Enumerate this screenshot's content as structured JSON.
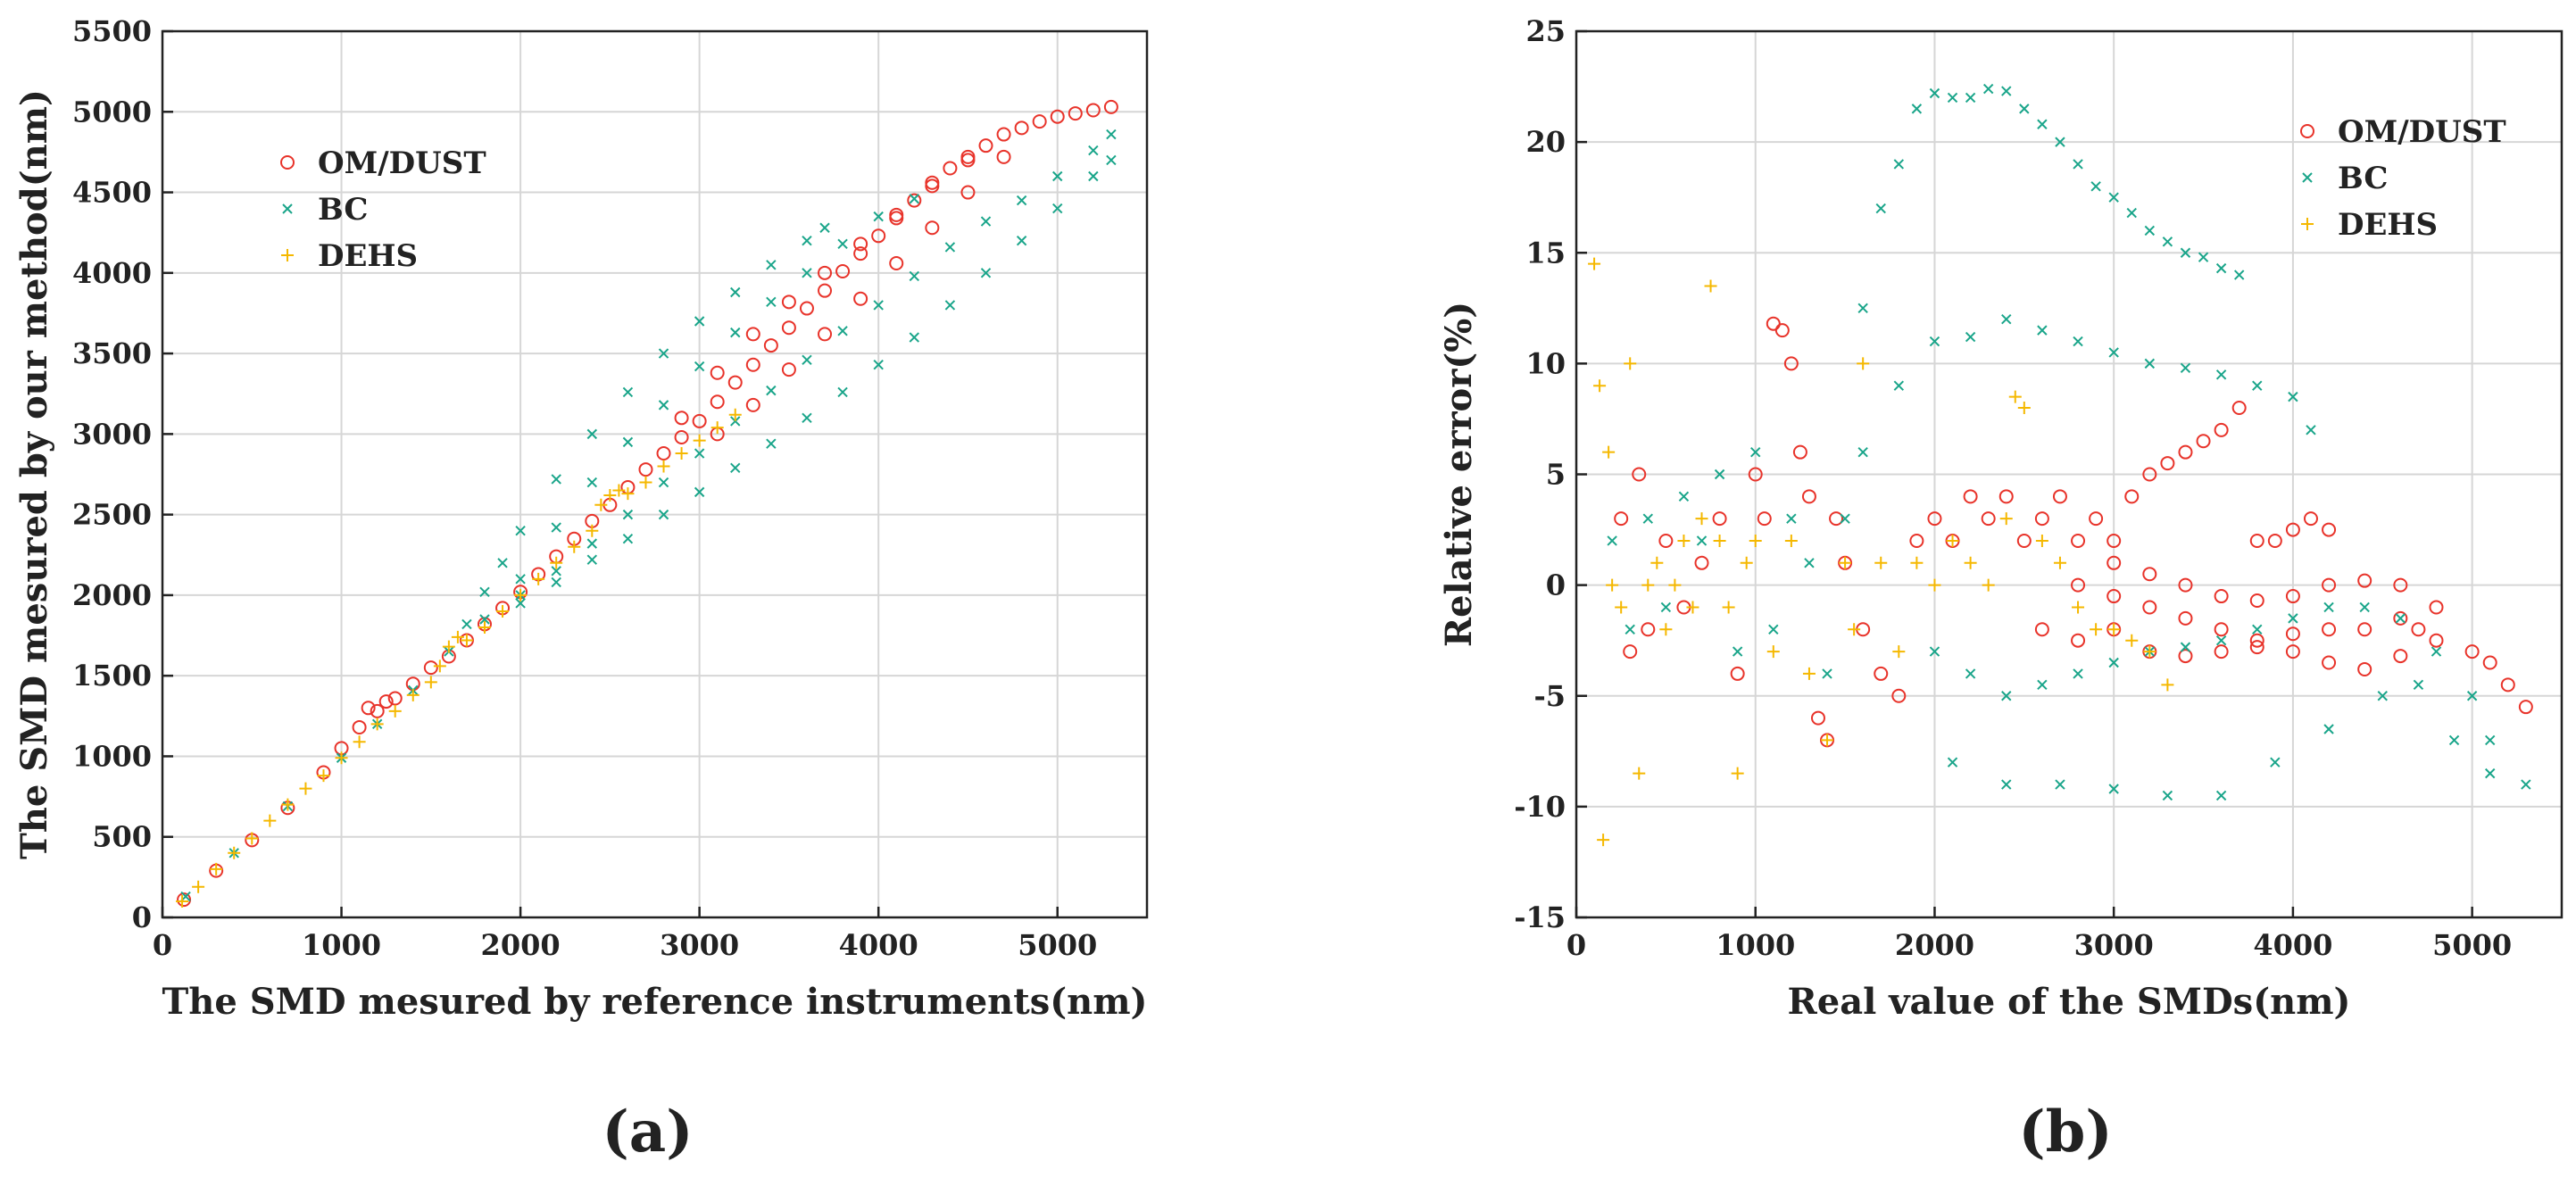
{
  "chart_data": [
    {
      "panel": "(a)",
      "type": "scatter",
      "xlabel": "The SMD mesured by reference instruments(nm)",
      "ylabel": "The SMD mesured by our method(nm)",
      "xlim": [
        0,
        5500
      ],
      "ylim": [
        0,
        5500
      ],
      "xticks": [
        0,
        1000,
        2000,
        3000,
        4000,
        5000
      ],
      "yticks": [
        0,
        500,
        1000,
        1500,
        2000,
        2500,
        3000,
        3500,
        4000,
        4500,
        5000,
        5500
      ],
      "grid": true,
      "legend_position": "top-left",
      "series": [
        {
          "name": "OM/DUST",
          "marker": "circle",
          "color": "#e8332a",
          "x": [
            120,
            300,
            500,
            700,
            900,
            1000,
            1100,
            1200,
            1300,
            1400,
            1500,
            1600,
            1700,
            1800,
            1900,
            2000,
            2100,
            2200,
            2300,
            2400,
            2500,
            2600,
            2700,
            2800,
            2900,
            3000,
            3100,
            3200,
            3300,
            3400,
            3500,
            3600,
            3700,
            3800,
            3900,
            4000,
            4100,
            4200,
            4300,
            4400,
            4500,
            4600,
            4700,
            4800,
            4900,
            5000,
            5100,
            5200,
            5300,
            1150,
            1250,
            3100,
            3300,
            3500,
            3700,
            3900,
            4100,
            4300,
            4500,
            4700,
            2900,
            3100,
            3300,
            3500,
            3700,
            3900,
            4100,
            4300,
            4500
          ],
          "y": [
            110,
            290,
            480,
            680,
            900,
            1050,
            1180,
            1280,
            1360,
            1450,
            1550,
            1620,
            1720,
            1820,
            1920,
            2020,
            2130,
            2240,
            2350,
            2460,
            2560,
            2670,
            2780,
            2880,
            2980,
            3080,
            3200,
            3320,
            3430,
            3550,
            3660,
            3780,
            3890,
            4010,
            4120,
            4230,
            4340,
            4450,
            4560,
            4650,
            4720,
            4790,
            4860,
            4900,
            4940,
            4970,
            4990,
            5010,
            5030,
            1300,
            1340,
            3000,
            3180,
            3400,
            3620,
            3840,
            4060,
            4280,
            4500,
            4720,
            3100,
            3380,
            3620,
            3820,
            4000,
            4180,
            4360,
            4540,
            4700
          ]
        },
        {
          "name": "BC",
          "marker": "x",
          "color": "#1aa58a",
          "x": [
            130,
            400,
            700,
            1000,
            1200,
            1400,
            1600,
            1700,
            1800,
            1900,
            2000,
            2200,
            2400,
            2600,
            2800,
            3000,
            3200,
            3400,
            3600,
            3700,
            2000,
            2200,
            2400,
            2600,
            2800,
            3000,
            3200,
            3400,
            3600,
            3800,
            4000,
            4200,
            2000,
            2200,
            2400,
            2600,
            2800,
            3000,
            3200,
            3400,
            3600,
            3800,
            4000,
            4200,
            4400,
            4600,
            4800,
            5000,
            5200,
            5300,
            1800,
            2000,
            2200,
            2400,
            2600,
            2800,
            3000,
            3200,
            3400,
            3600,
            3800,
            4000,
            4200,
            4400,
            4600,
            4800,
            5000,
            5200,
            5300
          ],
          "y": [
            130,
            400,
            690,
            990,
            1200,
            1410,
            1650,
            1820,
            2020,
            2200,
            2400,
            2720,
            3000,
            3260,
            3500,
            3700,
            3880,
            4050,
            4200,
            4280,
            2100,
            2420,
            2700,
            2950,
            3180,
            3420,
            3630,
            3820,
            4000,
            4180,
            4350,
            4460,
            2000,
            2150,
            2320,
            2500,
            2700,
            2880,
            3080,
            3270,
            3460,
            3640,
            3800,
            3980,
            4160,
            4320,
            4450,
            4600,
            4760,
            4860,
            1850,
            1950,
            2080,
            2220,
            2350,
            2500,
            2640,
            2790,
            2940,
            3100,
            3260,
            3430,
            3600,
            3800,
            4000,
            4200,
            4400,
            4600,
            4700
          ]
        },
        {
          "name": "DEHS",
          "marker": "plus",
          "color": "#f5b800",
          "x": [
            110,
            200,
            300,
            400,
            500,
            600,
            700,
            800,
            900,
            1000,
            1100,
            1200,
            1300,
            1400,
            1500,
            1550,
            1600,
            1650,
            1700,
            1800,
            1900,
            2000,
            2100,
            2200,
            2300,
            2400,
            2450,
            2500,
            2550,
            2600,
            2700,
            2800,
            2900,
            3000,
            3100,
            3200
          ],
          "y": [
            100,
            190,
            300,
            400,
            490,
            600,
            700,
            800,
            880,
            990,
            1090,
            1200,
            1280,
            1380,
            1460,
            1560,
            1680,
            1740,
            1720,
            1800,
            1900,
            2000,
            2100,
            2200,
            2300,
            2400,
            2560,
            2620,
            2650,
            2630,
            2700,
            2800,
            2880,
            2960,
            3040,
            3120
          ]
        }
      ]
    },
    {
      "panel": "(b)",
      "type": "scatter",
      "xlabel": "Real value of the SMDs(nm)",
      "ylabel": "Relative error(%)",
      "xlim": [
        0,
        5500
      ],
      "ylim": [
        -15,
        25
      ],
      "xticks": [
        0,
        1000,
        2000,
        3000,
        4000,
        5000
      ],
      "yticks": [
        -15,
        -10,
        -5,
        0,
        5,
        10,
        15,
        20,
        25
      ],
      "grid": true,
      "legend_position": "top-right",
      "series": [
        {
          "name": "OM/DUST",
          "marker": "circle",
          "color": "#e8332a",
          "x": [
            250,
            300,
            350,
            400,
            500,
            600,
            700,
            800,
            900,
            1000,
            1050,
            1100,
            1150,
            1200,
            1250,
            1300,
            1350,
            1400,
            1450,
            1500,
            1600,
            1700,
            1800,
            1900,
            2000,
            2100,
            2200,
            2300,
            2400,
            2500,
            2600,
            2700,
            2800,
            2900,
            3000,
            3100,
            3200,
            3300,
            3400,
            3500,
            3600,
            3700,
            3800,
            3900,
            4000,
            4100,
            4200,
            3000,
            3200,
            3400,
            3600,
            3800,
            4000,
            4200,
            4400,
            4600,
            4800,
            5000,
            5100,
            5200,
            5300,
            2600,
            2800,
            3000,
            3200,
            3400,
            3600,
            3800,
            4000,
            4200,
            4400,
            4600,
            4700,
            4800,
            2800,
            3000,
            3200,
            3400,
            3600,
            3800,
            4000,
            4200,
            4400,
            4600
          ],
          "y": [
            3,
            -3,
            5,
            -2,
            2,
            -1,
            1,
            3,
            -4,
            5,
            3,
            11.8,
            11.5,
            10,
            6,
            4,
            -6,
            -7,
            3,
            1,
            -2,
            -4,
            -5,
            2,
            3,
            2,
            4,
            3,
            4,
            2,
            3,
            4,
            2,
            3,
            2,
            4,
            5,
            5.5,
            6,
            6.5,
            7,
            8,
            2,
            2,
            2.5,
            3,
            2.5,
            1,
            0.5,
            0,
            -0.5,
            -0.7,
            -0.5,
            0,
            0.2,
            0,
            -1,
            -3,
            -3.5,
            -4.5,
            -5.5,
            -2,
            -2.5,
            -2,
            -3,
            -3.2,
            -3,
            -2.8,
            -2.2,
            -2,
            -2,
            -1.5,
            -2,
            -2.5,
            0,
            -0.5,
            -1,
            -1.5,
            -2,
            -2.5,
            -3,
            -3.5,
            -3.8,
            -3.2
          ]
        },
        {
          "name": "BC",
          "marker": "x",
          "color": "#1aa58a",
          "x": [
            200,
            300,
            400,
            500,
            600,
            700,
            800,
            900,
            1000,
            1100,
            1200,
            1300,
            1400,
            1500,
            1600,
            1700,
            1800,
            1900,
            2000,
            2100,
            2200,
            2300,
            2400,
            2500,
            2600,
            2700,
            2800,
            2900,
            3000,
            3100,
            3200,
            3300,
            3400,
            3500,
            3600,
            3700,
            1600,
            1800,
            2000,
            2200,
            2400,
            2600,
            2800,
            3000,
            3200,
            3400,
            3600,
            3800,
            4000,
            4100,
            2000,
            2200,
            2400,
            2600,
            2800,
            3000,
            3200,
            3400,
            3600,
            3800,
            4000,
            4200,
            4400,
            4600,
            4800,
            5000,
            5100,
            2100,
            2400,
            2700,
            3000,
            3300,
            3600,
            3900,
            4200,
            4500,
            4700,
            4900,
            5100,
            5300
          ],
          "y": [
            2,
            -2,
            3,
            -1,
            4,
            2,
            5,
            -3,
            6,
            -2,
            3,
            1,
            -4,
            3,
            12.5,
            17,
            19,
            21.5,
            22.2,
            22,
            22,
            22.4,
            22.3,
            21.5,
            20.8,
            20,
            19,
            18,
            17.5,
            16.8,
            16,
            15.5,
            15,
            14.8,
            14.3,
            14,
            6,
            9,
            11,
            11.2,
            12,
            11.5,
            11,
            10.5,
            10,
            9.8,
            9.5,
            9,
            8.5,
            7,
            -3,
            -4,
            -5,
            -4.5,
            -4,
            -3.5,
            -3,
            -2.8,
            -2.5,
            -2,
            -1.5,
            -1,
            -1,
            -1.5,
            -3,
            -5,
            -7,
            -8,
            -9,
            -9,
            -9.2,
            -9.5,
            -9.5,
            -8,
            -6.5,
            -5,
            -4.5,
            -7,
            -8.5,
            -9
          ]
        },
        {
          "name": "DEHS",
          "marker": "plus",
          "color": "#f5b800",
          "x": [
            100,
            130,
            150,
            180,
            200,
            250,
            300,
            350,
            400,
            450,
            500,
            550,
            600,
            650,
            700,
            750,
            800,
            850,
            900,
            950,
            1000,
            1100,
            1200,
            1300,
            1400,
            1500,
            1550,
            1600,
            1700,
            1800,
            1900,
            2000,
            2100,
            2200,
            2300,
            2400,
            2450,
            2500,
            2600,
            2700,
            2800,
            2900,
            3000,
            3100,
            3200,
            3300
          ],
          "y": [
            14.5,
            9,
            -11.5,
            6,
            0,
            -1,
            10,
            -8.5,
            0,
            1,
            -2,
            0,
            2,
            -1,
            3,
            13.5,
            2,
            -1,
            -8.5,
            1,
            2,
            -3,
            2,
            -4,
            -7,
            1,
            -2,
            10,
            1,
            -3,
            1,
            0,
            2,
            1,
            0,
            3,
            8.5,
            8,
            2,
            1,
            -1,
            -2,
            -2,
            -2.5,
            -3,
            -4.5
          ]
        }
      ]
    }
  ]
}
